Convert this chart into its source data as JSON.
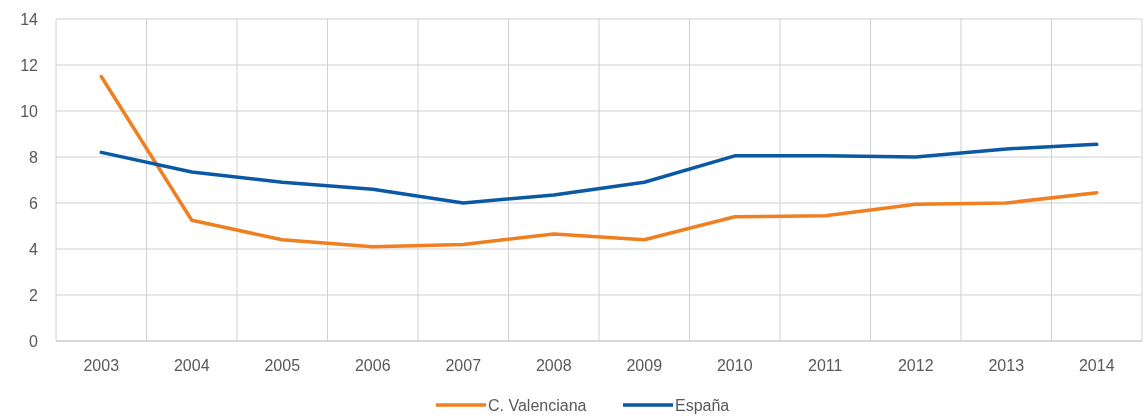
{
  "chart_data": {
    "type": "line",
    "categories": [
      "2003",
      "2004",
      "2005",
      "2006",
      "2007",
      "2008",
      "2009",
      "2010",
      "2011",
      "2012",
      "2013",
      "2014"
    ],
    "series": [
      {
        "name": "C. Valenciana",
        "color": "#f07f22",
        "values": [
          11.5,
          5.25,
          4.4,
          4.1,
          4.2,
          4.65,
          4.4,
          5.4,
          5.45,
          5.95,
          6.0,
          6.45
        ]
      },
      {
        "name": "España",
        "color": "#0b59a4",
        "values": [
          8.2,
          7.35,
          6.9,
          6.6,
          6.0,
          6.35,
          6.9,
          8.05,
          8.05,
          8.0,
          8.35,
          8.55
        ]
      }
    ],
    "ylim": [
      0,
      14
    ],
    "yticks": [
      0,
      2,
      4,
      6,
      8,
      10,
      12,
      14
    ],
    "grid": true,
    "legend": "bottom",
    "marker": "none",
    "line_style": "solid"
  }
}
